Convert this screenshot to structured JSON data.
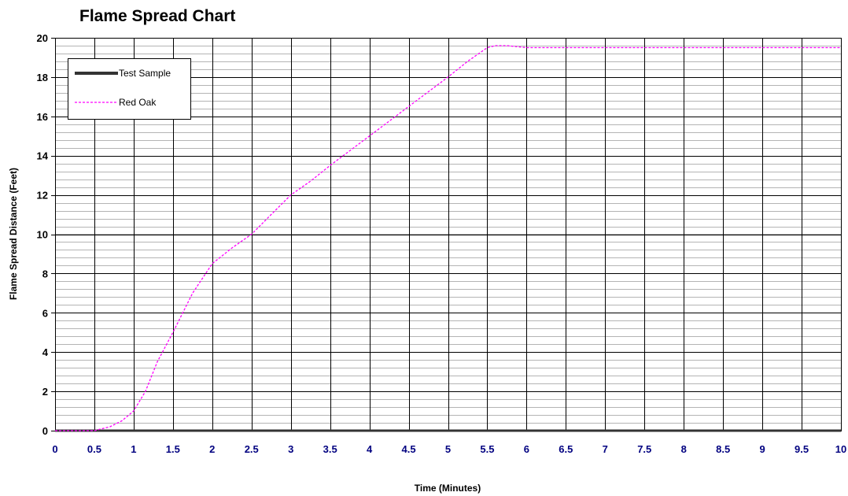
{
  "chart_data": {
    "type": "line",
    "title": "Flame Spread Chart",
    "xlabel": "Time (Minutes)",
    "ylabel": "Flame Spread Distance (Feet)",
    "xlim": [
      0,
      10
    ],
    "ylim": [
      0,
      20
    ],
    "x_ticks": [
      "0",
      "0.5",
      "1",
      "1.5",
      "2",
      "2.5",
      "3",
      "3.5",
      "4",
      "4.5",
      "5",
      "5.5",
      "6",
      "6.5",
      "7",
      "7.5",
      "8",
      "8.5",
      "9",
      "9.5",
      "10"
    ],
    "y_ticks": [
      "0",
      "2",
      "4",
      "6",
      "8",
      "10",
      "12",
      "14",
      "16",
      "18",
      "20"
    ],
    "grid": true,
    "legend": "top-left",
    "x_tick_color": "#000080",
    "series": [
      {
        "name": "Test Sample",
        "color": "#333333",
        "style": "solid",
        "x": [
          0,
          10
        ],
        "y": [
          0,
          0
        ]
      },
      {
        "name": "Red Oak",
        "color": "#ff00ff",
        "style": "dashed",
        "x": [
          0,
          0.5,
          0.7,
          0.85,
          1,
          1.15,
          1.3,
          1.5,
          1.75,
          2,
          2.25,
          2.5,
          2.75,
          3,
          3.25,
          3.5,
          4,
          4.5,
          5,
          5.25,
          5.5,
          5.6,
          5.75,
          6,
          7,
          8,
          9,
          10
        ],
        "y": [
          0,
          0,
          0.2,
          0.5,
          1,
          2,
          3.5,
          5,
          7,
          8.5,
          9.3,
          10,
          11,
          12,
          12.7,
          13.5,
          15,
          16.5,
          18,
          18.8,
          19.5,
          19.6,
          19.6,
          19.5,
          19.5,
          19.5,
          19.5,
          19.5
        ]
      }
    ]
  }
}
